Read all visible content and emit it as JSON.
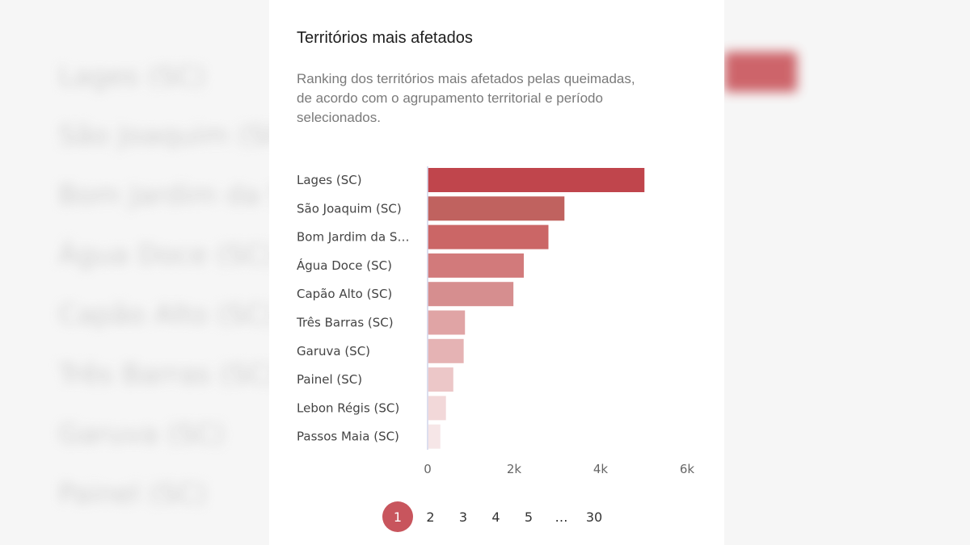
{
  "background": {
    "blurred_labels": [
      "Lages (SC)",
      "São Joaquim (SC)",
      "Bom Jardim da S",
      "Água Doce (SC)",
      "Capão Alto (SC)",
      "Três Barras (SC)",
      "Garuva (SC)",
      "Painel (SC)"
    ]
  },
  "card": {
    "title": "Territórios mais afetados",
    "subtitle": "Ranking dos territórios mais afetados pelas queimadas, de acordo com o agrupamento territorial e período selecionados."
  },
  "chart_data": {
    "type": "bar",
    "orientation": "horizontal",
    "categories": [
      "Lages (SC)",
      "São Joaquim (SC)",
      "Bom Jardim da S…",
      "Água Doce (SC)",
      "Capão Alto (SC)",
      "Três Barras (SC)",
      "Garuva (SC)",
      "Painel (SC)",
      "Lebon Régis (SC)",
      "Passos Maia (SC)"
    ],
    "values": [
      5000,
      3150,
      2780,
      2210,
      1970,
      850,
      820,
      580,
      410,
      280
    ],
    "colors": [
      "#c0454c",
      "#c0625f",
      "#cb6666",
      "#d27a7b",
      "#d68e8f",
      "#e0a4a5",
      "#e5b3b4",
      "#ecc7c8",
      "#f2d8d9",
      "#f6e6e7"
    ],
    "xlim": [
      0,
      6000
    ],
    "xticks": [
      0,
      2000,
      4000,
      6000
    ],
    "xtick_labels": [
      "0",
      "2k",
      "4k",
      "6k"
    ],
    "title": "",
    "xlabel": "",
    "ylabel": "",
    "grid": false
  },
  "pagination": {
    "pages": [
      "1",
      "2",
      "3",
      "4",
      "5",
      "…",
      "30"
    ],
    "active": "1",
    "accent": "#c8555d"
  }
}
